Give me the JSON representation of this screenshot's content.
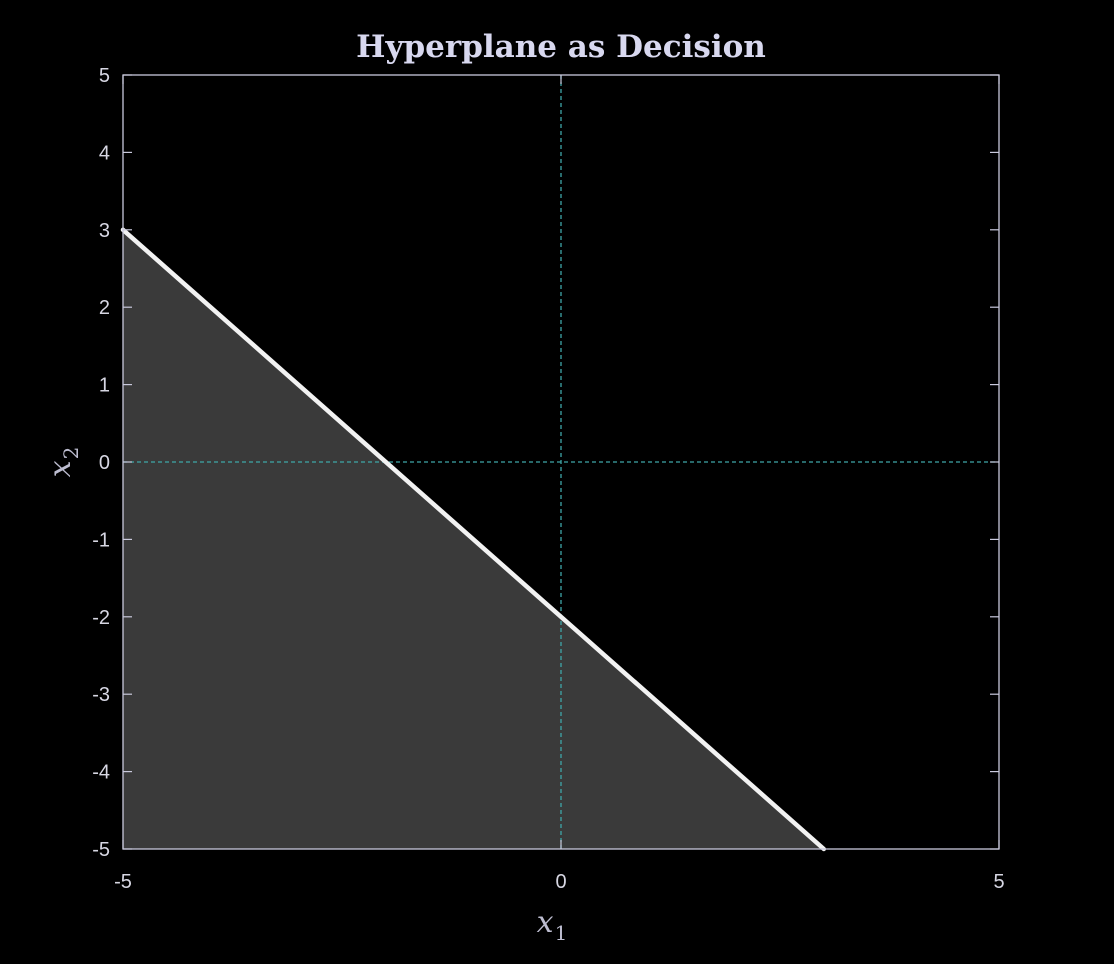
{
  "chart_data": {
    "type": "area",
    "title": "Hyperplane as Decision",
    "xlabel": {
      "base": "x",
      "subscript": "1"
    },
    "ylabel": {
      "base": "x",
      "subscript": "2"
    },
    "xlim": [
      -5,
      5
    ],
    "ylim": [
      -5,
      5
    ],
    "x_ticks": [
      -5,
      0,
      5
    ],
    "x_tick_labels": [
      "-5",
      "0",
      "5"
    ],
    "y_ticks": [
      -5,
      -4,
      -3,
      -2,
      -1,
      0,
      1,
      2,
      3,
      4,
      5
    ],
    "y_tick_labels": [
      "-5",
      "-4",
      "-3",
      "-2",
      "-1",
      "0",
      "1",
      "2",
      "3",
      "4",
      "5"
    ],
    "grid": false,
    "reference_lines": {
      "x": 0,
      "y": 0,
      "style": "dashed"
    },
    "series": [
      {
        "kind": "line",
        "x": [
          -5,
          3
        ],
        "y": [
          3,
          -5
        ]
      }
    ],
    "shaded_region": {
      "polygon": [
        [
          -5,
          3
        ],
        [
          3,
          -5
        ],
        [
          -5,
          -5
        ]
      ]
    },
    "colors": {
      "background": "#000000",
      "axes": "#c9c9dc",
      "tick_labels": "#d7d7e3",
      "title": "#d8d8ef",
      "axis_labels": "#bdbdd0",
      "reference_lines": "#3fa7a8",
      "boundary_line": "#f2f2f2",
      "shaded_fill": "#3a3a3a"
    }
  }
}
